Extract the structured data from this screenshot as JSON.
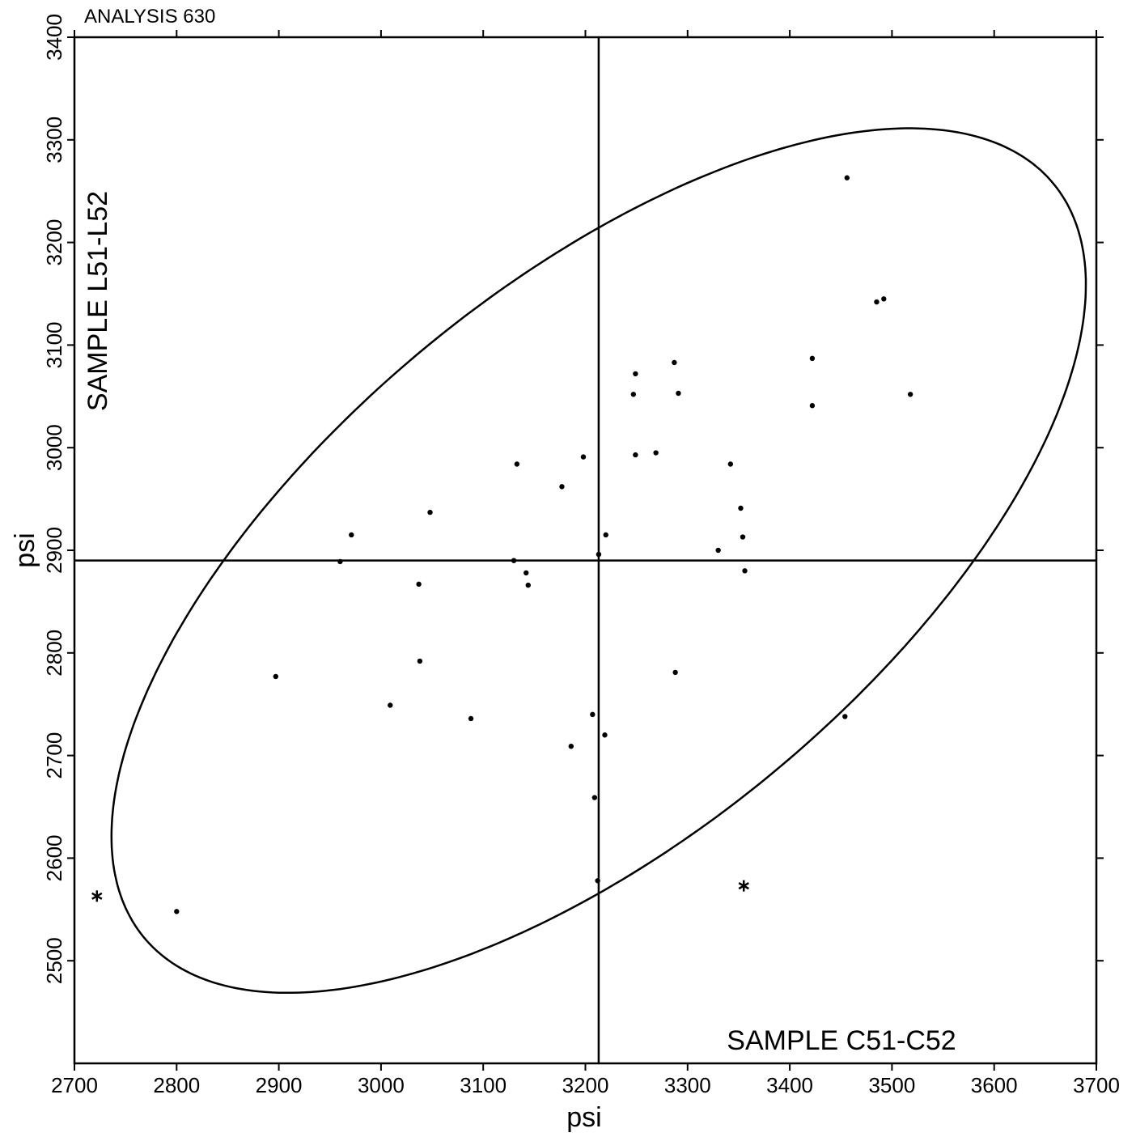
{
  "chart_data": {
    "type": "scatter",
    "title": "ANALYSIS 630",
    "xlabel": "psi",
    "ylabel": "psi",
    "xlim": [
      2700,
      3700
    ],
    "ylim": [
      2400,
      3400
    ],
    "xticks": [
      2700,
      2800,
      2900,
      3000,
      3100,
      3200,
      3300,
      3400,
      3500,
      3600,
      3700
    ],
    "yticks": [
      2500,
      2600,
      2700,
      2800,
      2900,
      3000,
      3100,
      3200,
      3300,
      3400
    ],
    "grid": false,
    "annotations": {
      "x_sample": "SAMPLE C51-C52",
      "y_sample": "SAMPLE L51-L52"
    },
    "reference_lines": {
      "x": 3213,
      "y": 2890
    },
    "points": [
      {
        "x": 2800,
        "y": 2548
      },
      {
        "x": 2897,
        "y": 2777
      },
      {
        "x": 2960,
        "y": 2889
      },
      {
        "x": 2971,
        "y": 2915
      },
      {
        "x": 3009,
        "y": 2749
      },
      {
        "x": 3037,
        "y": 2867
      },
      {
        "x": 3038,
        "y": 2792
      },
      {
        "x": 3048,
        "y": 2937
      },
      {
        "x": 3088,
        "y": 2736
      },
      {
        "x": 3130,
        "y": 2890
      },
      {
        "x": 3133,
        "y": 2984
      },
      {
        "x": 3142,
        "y": 2878
      },
      {
        "x": 3144,
        "y": 2866
      },
      {
        "x": 3177,
        "y": 2962
      },
      {
        "x": 3186,
        "y": 2709
      },
      {
        "x": 3198,
        "y": 2991
      },
      {
        "x": 3207,
        "y": 2740
      },
      {
        "x": 3209,
        "y": 2659
      },
      {
        "x": 3212,
        "y": 2578
      },
      {
        "x": 3213,
        "y": 2896
      },
      {
        "x": 3219,
        "y": 2720
      },
      {
        "x": 3220,
        "y": 2915
      },
      {
        "x": 3247,
        "y": 3052
      },
      {
        "x": 3249,
        "y": 3072
      },
      {
        "x": 3249,
        "y": 2993
      },
      {
        "x": 3269,
        "y": 2995
      },
      {
        "x": 3287,
        "y": 3083
      },
      {
        "x": 3288,
        "y": 2781
      },
      {
        "x": 3291,
        "y": 3053
      },
      {
        "x": 3330,
        "y": 2900
      },
      {
        "x": 3342,
        "y": 2984
      },
      {
        "x": 3352,
        "y": 2941
      },
      {
        "x": 3354,
        "y": 2913
      },
      {
        "x": 3356,
        "y": 2880
      },
      {
        "x": 3422,
        "y": 3087
      },
      {
        "x": 3422,
        "y": 3041
      },
      {
        "x": 3454,
        "y": 2738
      },
      {
        "x": 3456,
        "y": 3263
      },
      {
        "x": 3485,
        "y": 3142
      },
      {
        "x": 3492,
        "y": 3145
      },
      {
        "x": 3518,
        "y": 3052
      }
    ],
    "outliers": [
      {
        "x": 2722,
        "y": 2563
      },
      {
        "x": 3355,
        "y": 2573
      }
    ],
    "ellipse": {
      "center": [
        3213,
        2890
      ],
      "semi_axes": [
        577,
        268
      ],
      "rotation_deg": 39.5
    }
  }
}
